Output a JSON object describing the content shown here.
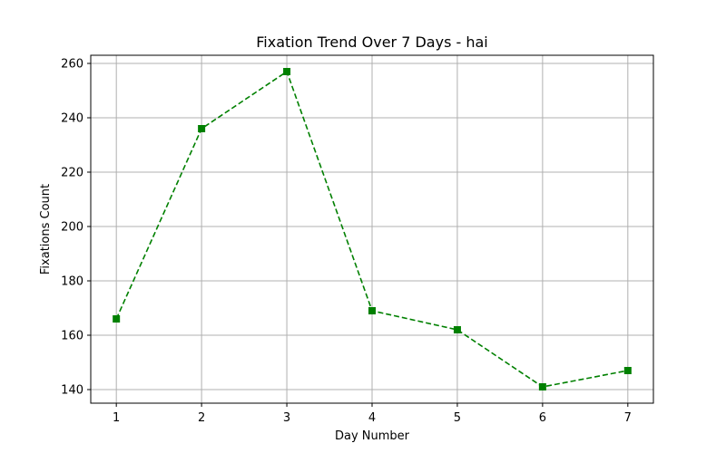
{
  "chart_data": {
    "type": "line",
    "title": "Fixation Trend Over 7 Days - hai",
    "xlabel": "Day Number",
    "ylabel": "Fixations Count",
    "x": [
      1,
      2,
      3,
      4,
      5,
      6,
      7
    ],
    "series": [
      {
        "values": [
          166,
          236,
          257,
          169,
          162,
          141,
          147
        ],
        "color": "#008000",
        "line_style": "dashed",
        "marker": "square"
      }
    ],
    "xlim": [
      0.7,
      7.3
    ],
    "ylim": [
      135,
      263
    ],
    "x_ticks": [
      1,
      2,
      3,
      4,
      5,
      6,
      7
    ],
    "y_ticks": [
      140,
      160,
      180,
      200,
      220,
      240,
      260
    ],
    "grid": true
  }
}
